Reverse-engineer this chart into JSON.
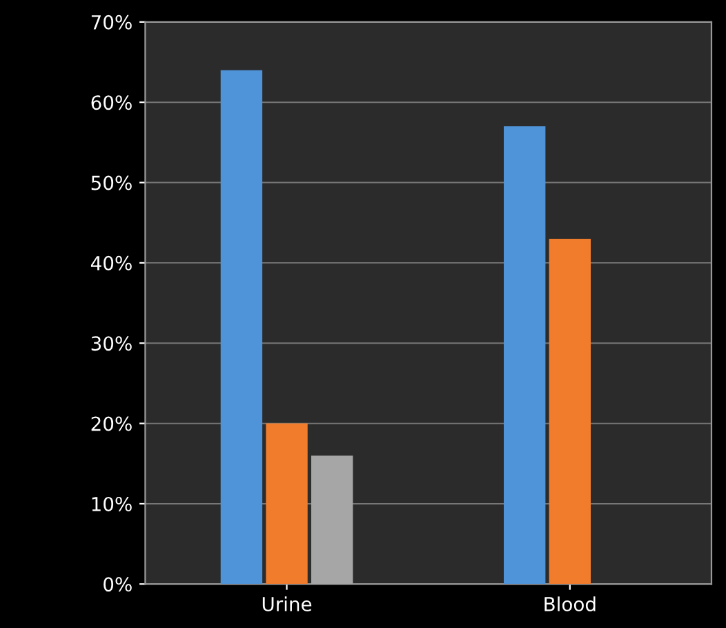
{
  "chart_data": {
    "type": "bar",
    "categories": [
      "Urine",
      "Blood"
    ],
    "series": [
      {
        "color": "#4f93d8",
        "values": [
          64,
          57
        ]
      },
      {
        "color": "#f07c2c",
        "values": [
          20,
          43
        ]
      },
      {
        "color": "#a6a6a6",
        "values": [
          16,
          null
        ]
      }
    ],
    "ylim": [
      0,
      70
    ],
    "yticks": [
      {
        "value": 0,
        "label": "0%"
      },
      {
        "value": 10,
        "label": "10%"
      },
      {
        "value": 20,
        "label": "20%"
      },
      {
        "value": 30,
        "label": "30%"
      },
      {
        "value": 40,
        "label": "40%"
      },
      {
        "value": 50,
        "label": "50%"
      },
      {
        "value": 60,
        "label": "60%"
      },
      {
        "value": 70,
        "label": "70%"
      }
    ],
    "grid": "y",
    "legend": false
  }
}
